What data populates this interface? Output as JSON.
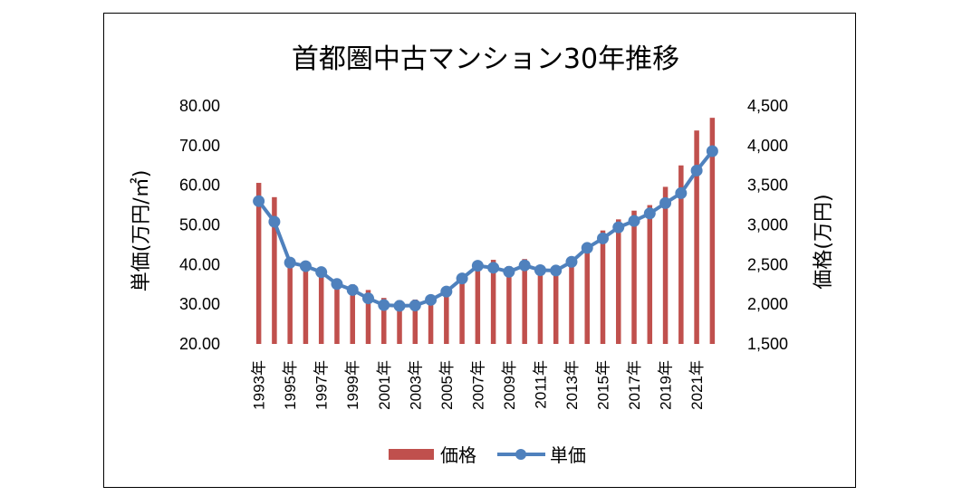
{
  "chart_data": {
    "type": "bar+line",
    "title": "首都圏中古マンション30年推移",
    "ylabel_left": "単価(万円/㎡)",
    "ylabel_right": "価格(万円)",
    "ylim_left": [
      20,
      80
    ],
    "ylim_right": [
      1500,
      4500
    ],
    "yticks_left": [
      "20.00",
      "30.00",
      "40.00",
      "50.00",
      "60.00",
      "70.00",
      "80.00"
    ],
    "yticks_right": [
      "1,500",
      "2,000",
      "2,500",
      "3,000",
      "3,500",
      "4,000",
      "4,500"
    ],
    "x": [
      "1993年",
      "1994年",
      "1995年",
      "1996年",
      "1997年",
      "1998年",
      "1999年",
      "2000年",
      "2001年",
      "2002年",
      "2003年",
      "2004年",
      "2005年",
      "2006年",
      "2007年",
      "2008年",
      "2009年",
      "2010年",
      "2011年",
      "2012年",
      "2013年",
      "2014年",
      "2015年",
      "2016年",
      "2017年",
      "2018年",
      "2019年",
      "2020年",
      "2021年",
      "2022年"
    ],
    "x_tick_labels": [
      "1993年",
      "1995年",
      "1997年",
      "1999年",
      "2001年",
      "2003年",
      "2005年",
      "2007年",
      "2009年",
      "2011年",
      "2013年",
      "2015年",
      "2017年",
      "2019年",
      "2021年"
    ],
    "series": [
      {
        "name": "価格",
        "kind": "bar",
        "axis": "right",
        "color": "#c0504d",
        "values": [
          3530,
          3350,
          2560,
          2450,
          2410,
          2310,
          2250,
          2180,
          2080,
          2050,
          2060,
          2110,
          2200,
          2320,
          2530,
          2560,
          2480,
          2570,
          2490,
          2470,
          2570,
          2730,
          2930,
          3070,
          3180,
          3250,
          3480,
          3750,
          4190,
          4350
        ]
      },
      {
        "name": "単価",
        "kind": "line",
        "axis": "left",
        "color": "#4f81bd",
        "values": [
          56.0,
          50.8,
          40.5,
          39.6,
          38.1,
          35.1,
          33.6,
          31.5,
          29.8,
          29.6,
          29.7,
          31.1,
          33.2,
          36.5,
          39.7,
          39.2,
          38.2,
          39.8,
          38.6,
          38.5,
          40.7,
          44.2,
          46.6,
          49.4,
          51.0,
          52.9,
          55.5,
          58.0,
          63.7,
          68.6
        ]
      }
    ],
    "legend": {
      "position": "bottom",
      "entries": [
        "価格",
        "単価"
      ]
    },
    "grid": false
  }
}
